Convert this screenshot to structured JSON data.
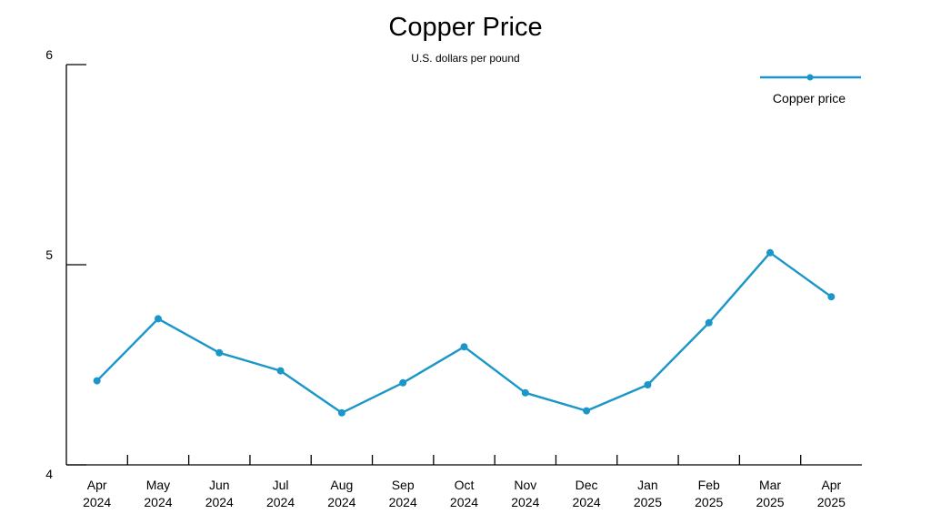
{
  "chart_data": {
    "type": "line",
    "title": "Copper Price",
    "subtitle": "U.S. dollars per pound",
    "xlabel": "",
    "ylabel": "",
    "categories": [
      [
        "Apr",
        "2024"
      ],
      [
        "May",
        "2024"
      ],
      [
        "Jun",
        "2024"
      ],
      [
        "Jul",
        "2024"
      ],
      [
        "Aug",
        "2024"
      ],
      [
        "Sep",
        "2024"
      ],
      [
        "Oct",
        "2024"
      ],
      [
        "Nov",
        "2024"
      ],
      [
        "Dec",
        "2024"
      ],
      [
        "Jan",
        "2025"
      ],
      [
        "Feb",
        "2025"
      ],
      [
        "Mar",
        "2025"
      ],
      [
        "Apr",
        "2025"
      ]
    ],
    "series": [
      {
        "name": "Copper price",
        "color": "#1a96c8",
        "values": [
          4.42,
          4.73,
          4.56,
          4.47,
          4.26,
          4.41,
          4.59,
          4.36,
          4.27,
          4.4,
          4.71,
          5.06,
          4.84
        ]
      }
    ],
    "ylim": [
      4,
      6
    ],
    "yticks": [
      4,
      5,
      6
    ],
    "grid": false,
    "legend_position": "top-right"
  }
}
